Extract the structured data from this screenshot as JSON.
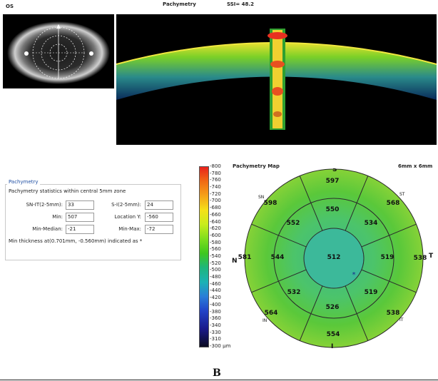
{
  "header": {
    "eye": "OS",
    "title": "Pachymetry",
    "ssi": "SSI= 48.2"
  },
  "stats_panel": {
    "legend": "Pachymetry",
    "subtitle": "Pachymetry statistics within central 5mm zone",
    "fields": [
      {
        "label": "SN-IT(2-5mm):",
        "value": "33"
      },
      {
        "label": "S-I(2-5mm):",
        "value": "24"
      },
      {
        "label": "Min:",
        "value": "507"
      },
      {
        "label": "Location Y:",
        "value": "-560"
      },
      {
        "label": "Min-Median:",
        "value": "-21"
      },
      {
        "label": "Min-Max:",
        "value": "-72"
      }
    ],
    "note": "Min thickness at(0.701mm, -0.560mm) indicated as *"
  },
  "colorbar": {
    "ticks": [
      "800",
      "780",
      "760",
      "740",
      "720",
      "700",
      "680",
      "660",
      "640",
      "620",
      "600",
      "580",
      "560",
      "540",
      "520",
      "500",
      "480",
      "460",
      "440",
      "420",
      "400",
      "380",
      "360",
      "340",
      "330",
      "310",
      "300 µm"
    ]
  },
  "map": {
    "title": "Pachymetry Map",
    "size": "6mm x 6mm",
    "directions": {
      "top": "S",
      "bottom": "I",
      "left": "N",
      "right": "T"
    },
    "sector_labels": {
      "sn": "SN",
      "st": "ST",
      "in": "IN",
      "it": "IT"
    },
    "center": "512",
    "inner": {
      "s": "550",
      "st": "534",
      "t": "519",
      "it": "519",
      "i": "526",
      "in": "532",
      "n": "544",
      "sn": "552"
    },
    "outer": {
      "s": "597",
      "st": "568",
      "t": "538",
      "it": "538",
      "i": "554",
      "in": "564",
      "n": "581",
      "sn": "598"
    },
    "min_marker": "*",
    "colors": {
      "base": "#5ac83a",
      "center": "#3cb98a",
      "outer": "#78d03a",
      "lines": "#2b2b2b"
    }
  },
  "figure_label": "B"
}
